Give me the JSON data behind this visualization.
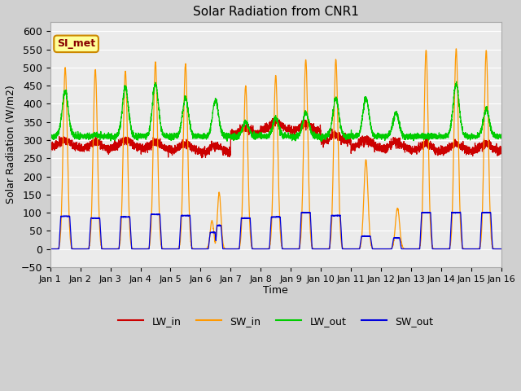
{
  "title": "Solar Radiation from CNR1",
  "xlabel": "Time",
  "ylabel": "Solar Radiation (W/m2)",
  "annotation": "SI_met",
  "ylim": [
    -50,
    625
  ],
  "yticks": [
    -50,
    0,
    50,
    100,
    150,
    200,
    250,
    300,
    350,
    400,
    450,
    500,
    550,
    600
  ],
  "xlim_days": [
    0,
    15
  ],
  "xtick_labels": [
    "Jan 1",
    "Jan 2",
    "Jan 3",
    "Jan 4",
    "Jan 5",
    "Jan 6",
    "Jan 7",
    "Jan 8",
    "Jan 9",
    "Jan 10",
    "Jan 11",
    "Jan 12",
    "Jan 13",
    "Jan 14",
    "Jan 15",
    "Jan 16"
  ],
  "colors": {
    "LW_in": "#cc0000",
    "SW_in": "#ff9900",
    "LW_out": "#00cc00",
    "SW_out": "#0000dd"
  },
  "fig_bg": "#d0d0d0",
  "plot_bg": "#ebebeb",
  "grid_color": "#ffffff",
  "annotation_bg": "#ffff99",
  "annotation_border": "#cc8800",
  "annotation_text_color": "#880000",
  "sw_in_peaks": [
    500,
    495,
    490,
    515,
    510,
    155,
    450,
    478,
    522,
    522,
    245,
    112,
    548,
    552,
    547
  ],
  "lw_out_peaks": [
    435,
    315,
    445,
    455,
    415,
    410,
    350,
    360,
    375,
    415,
    415,
    375,
    310,
    455,
    385
  ],
  "sw_out_peaks": [
    90,
    85,
    88,
    95,
    92,
    65,
    85,
    88,
    100,
    92,
    35,
    30,
    100,
    100,
    100
  ],
  "lw_in_base": 285,
  "lw_in_bump": 20
}
